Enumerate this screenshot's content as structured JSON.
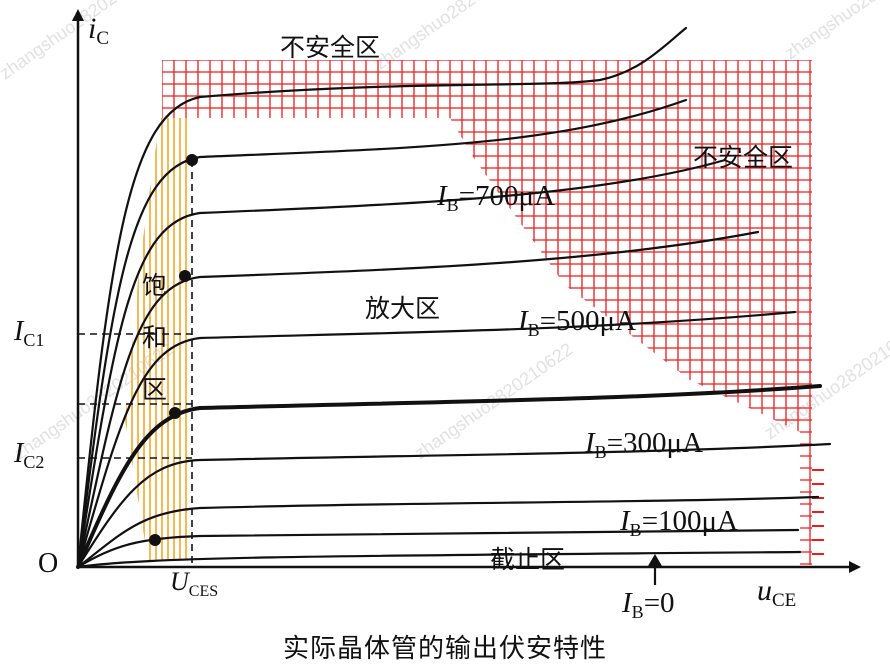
{
  "caption": "实际晶体管的输出伏安特性",
  "axes": {
    "y_symbol": "i",
    "y_sub": "C",
    "x_symbol": "u",
    "x_sub": "CE",
    "origin": "O"
  },
  "y_ticks": [
    {
      "symbol": "I",
      "sub": "C1"
    },
    {
      "symbol": "I",
      "sub": "C2"
    }
  ],
  "x_tick": {
    "symbol": "U",
    "sub": "CES"
  },
  "regions": {
    "unsafe_top": "不安全区",
    "unsafe_right": "不安全区",
    "active": "放大区",
    "saturation_chars": [
      "饱",
      "和",
      "区"
    ],
    "cutoff": "截止区"
  },
  "curve_labels": [
    {
      "symbol": "I",
      "sub": "B",
      "value": "=700μA"
    },
    {
      "symbol": "I",
      "sub": "B",
      "value": "=500μA"
    },
    {
      "symbol": "I",
      "sub": "B",
      "value": "=300μA"
    },
    {
      "symbol": "I",
      "sub": "B",
      "value": "=100μA"
    },
    {
      "symbol": "I",
      "sub": "B",
      "value": "=0"
    }
  ],
  "watermark": "zhangshuo2820210622",
  "colors": {
    "curves": "#111111",
    "unsafe_grid": "#ee1c1c",
    "saturation_hatch": "#f5a623",
    "axes": "#111111"
  }
}
